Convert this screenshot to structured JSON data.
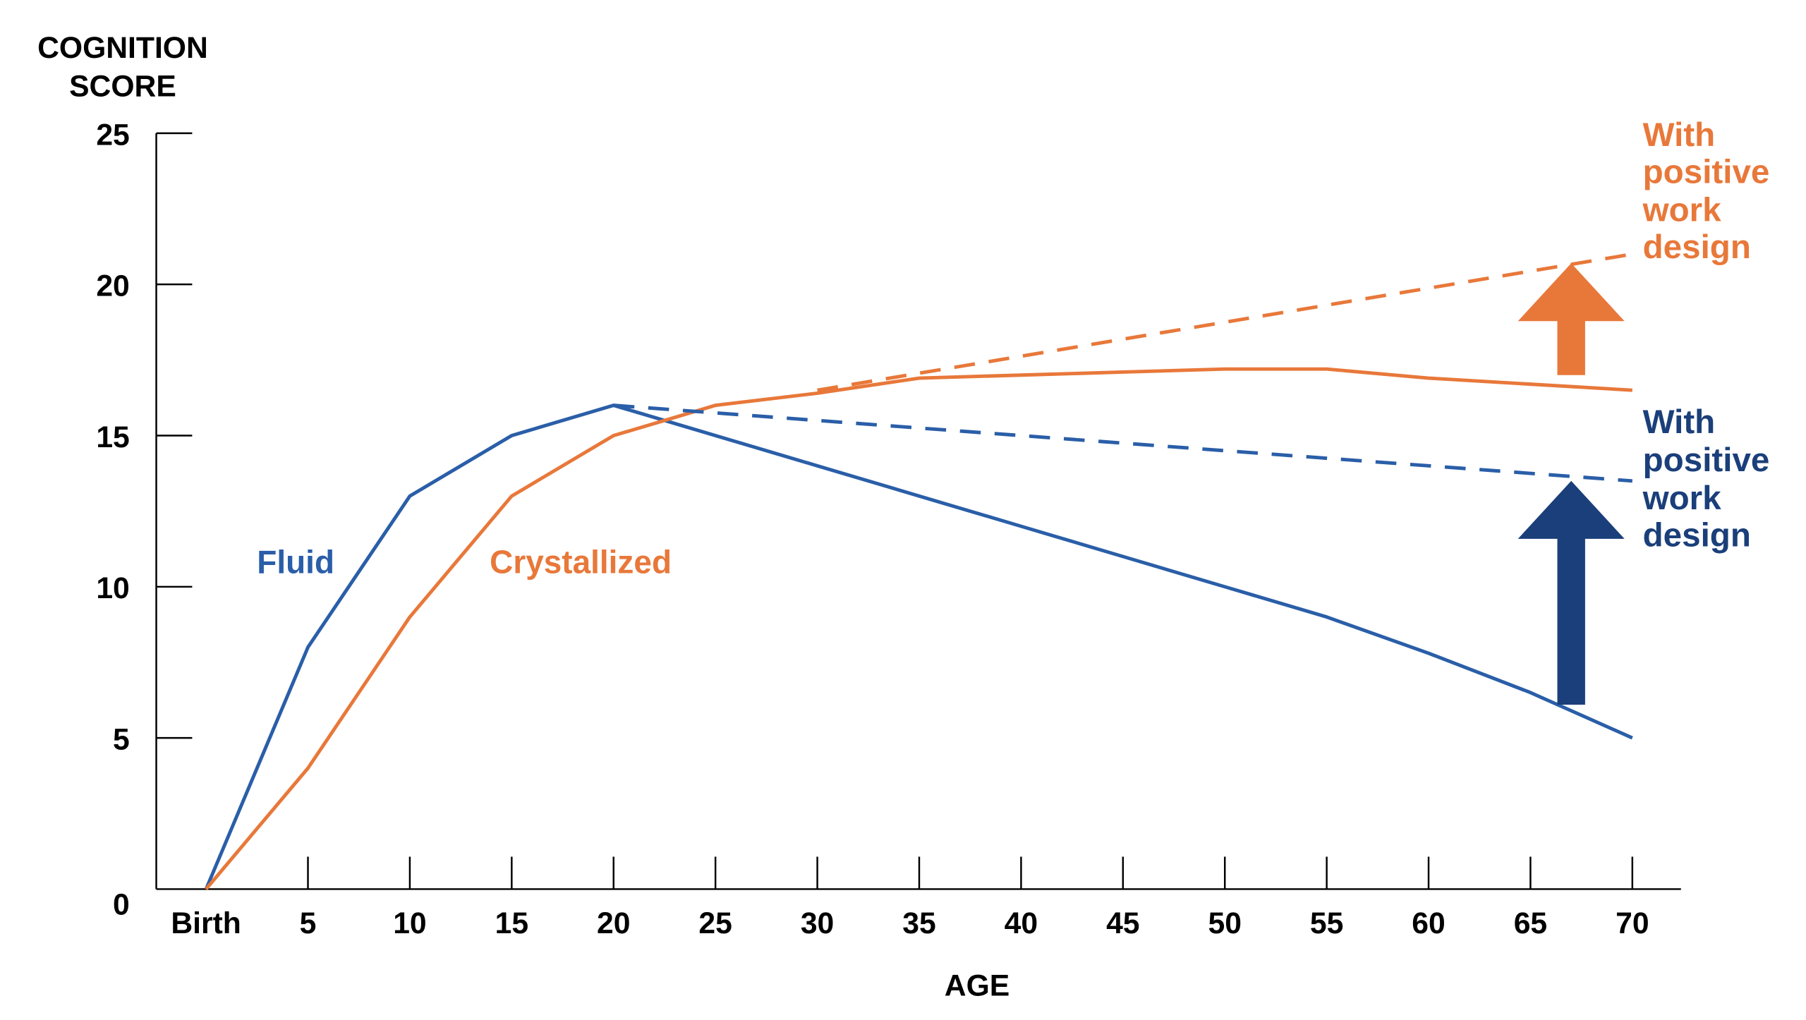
{
  "chart_data": {
    "type": "line",
    "ylabel_lines": [
      "COGNITION",
      "SCORE"
    ],
    "xlabel": "AGE",
    "x_ticks": [
      "Birth",
      "5",
      "10",
      "15",
      "20",
      "25",
      "30",
      "35",
      "40",
      "45",
      "50",
      "55",
      "60",
      "65",
      "70"
    ],
    "x": [
      0,
      5,
      10,
      15,
      20,
      25,
      30,
      35,
      40,
      45,
      50,
      55,
      60,
      65,
      70
    ],
    "y_ticks": [
      0,
      5,
      10,
      15,
      20,
      25
    ],
    "ylim": [
      0,
      25
    ],
    "xlim": [
      0,
      70
    ],
    "grid": false,
    "series": [
      {
        "name": "Fluid",
        "color": "#2a5ea8",
        "style": "solid",
        "x": [
          0,
          5,
          10,
          15,
          20,
          25,
          30,
          35,
          40,
          45,
          50,
          55,
          60,
          65,
          70
        ],
        "values": [
          0,
          8,
          13,
          15,
          16,
          15,
          14,
          13,
          12,
          11,
          10,
          9,
          7.8,
          6.5,
          5
        ]
      },
      {
        "name": "Crystallized",
        "color": "#e8783a",
        "style": "solid",
        "x": [
          0,
          5,
          10,
          15,
          20,
          25,
          30,
          35,
          40,
          45,
          50,
          55,
          60,
          65,
          70
        ],
        "values": [
          0,
          4,
          9,
          13,
          15,
          16,
          16.4,
          16.9,
          17,
          17.1,
          17.2,
          17.2,
          16.9,
          16.7,
          16.5
        ]
      },
      {
        "color": "#2a5ea8",
        "style": "dashed",
        "x": [
          20,
          70
        ],
        "values": [
          16,
          13.5
        ]
      },
      {
        "color": "#e8783a",
        "style": "dashed",
        "x": [
          30,
          70
        ],
        "values": [
          16.5,
          21
        ]
      }
    ],
    "annotations": [
      {
        "lines": [
          "With",
          "positive",
          "work",
          "design"
        ],
        "color": "#e8783a"
      },
      {
        "lines": [
          "With",
          "positive",
          "work",
          "design"
        ],
        "color": "#1a3f7a"
      }
    ],
    "arrows": [
      {
        "direction": "up",
        "color": "#e8783a",
        "x": 67,
        "from": 17,
        "to": 20.7
      },
      {
        "direction": "up",
        "color": "#1a3f7a",
        "x": 67,
        "from": 6.1,
        "to": 13.5
      }
    ]
  }
}
